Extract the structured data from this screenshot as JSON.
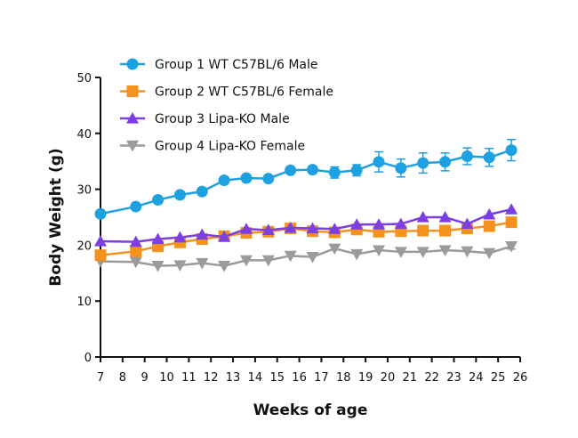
{
  "chart_data": {
    "type": "line",
    "title": "",
    "xlabel": "Weeks of age",
    "ylabel": "Body Weight (g)",
    "xlim": [
      7,
      26
    ],
    "ylim": [
      0,
      50
    ],
    "x_ticks": [
      7,
      8,
      9,
      10,
      11,
      12,
      13,
      14,
      15,
      16,
      17,
      18,
      19,
      20,
      21,
      22,
      23,
      24,
      25,
      26
    ],
    "y_ticks": [
      0,
      10,
      20,
      30,
      40,
      50
    ],
    "grid": false,
    "legend_position": "top-left",
    "series": [
      {
        "name": "Group 1 WT C57BL/6 Male",
        "color": "#1ea1e0",
        "marker": "circle",
        "x": [
          7,
          8.6,
          9.6,
          10.6,
          11.6,
          12.6,
          13.6,
          14.6,
          15.6,
          16.6,
          17.6,
          18.6,
          19.6,
          20.6,
          21.6,
          22.6,
          23.6,
          24.6,
          25.6
        ],
        "y": [
          25.6,
          26.9,
          28.1,
          29.0,
          29.6,
          31.6,
          32.0,
          31.9,
          33.4,
          33.5,
          33.0,
          33.4,
          34.9,
          33.8,
          34.7,
          34.9,
          35.9,
          35.7,
          37.0
        ],
        "err": [
          0.3,
          0.3,
          0.3,
          0.3,
          0.3,
          0.5,
          0.4,
          0.4,
          0.5,
          0.6,
          1.0,
          1.0,
          1.8,
          1.6,
          1.8,
          1.6,
          1.5,
          1.6,
          1.9
        ]
      },
      {
        "name": "Group 2 WT C57BL/6 Female",
        "color": "#f5921e",
        "marker": "square",
        "x": [
          7,
          8.6,
          9.6,
          10.6,
          11.6,
          12.6,
          13.6,
          14.6,
          15.6,
          16.6,
          17.6,
          18.6,
          19.6,
          20.6,
          21.6,
          22.6,
          23.6,
          24.6,
          25.6
        ],
        "y": [
          18.2,
          18.9,
          19.8,
          20.5,
          21.1,
          21.6,
          22.2,
          22.4,
          23.0,
          22.5,
          22.3,
          22.8,
          22.4,
          22.5,
          22.6,
          22.6,
          23.0,
          23.4,
          24.1
        ],
        "err": [
          0.3,
          0.3,
          0.3,
          0.3,
          0.3,
          0.3,
          0.3,
          0.3,
          0.3,
          0.3,
          0.3,
          0.3,
          0.3,
          0.3,
          0.3,
          0.3,
          0.3,
          0.4,
          0.5
        ]
      },
      {
        "name": "Group 3 Lipa-KO Male",
        "color": "#7b3fe4",
        "marker": "triangle-up",
        "x": [
          7,
          8.6,
          9.6,
          10.6,
          11.6,
          12.6,
          13.6,
          14.6,
          15.6,
          16.6,
          17.6,
          18.6,
          19.6,
          20.6,
          21.6,
          22.6,
          23.6,
          24.6,
          25.6
        ],
        "y": [
          20.7,
          20.6,
          21.1,
          21.4,
          21.9,
          21.5,
          22.9,
          22.7,
          23.1,
          23.0,
          22.9,
          23.7,
          23.7,
          23.8,
          25.0,
          25.0,
          23.8,
          25.5,
          26.4
        ],
        "err": [
          0.3,
          0.3,
          0.3,
          0.3,
          0.3,
          0.3,
          0.3,
          0.3,
          0.3,
          0.3,
          0.3,
          0.3,
          0.3,
          0.3,
          0.3,
          0.3,
          0.3,
          0.3,
          0.3
        ]
      },
      {
        "name": "Group 4 Lipa-KO Female",
        "color": "#9b9b9b",
        "marker": "triangle-down",
        "x": [
          7,
          8.6,
          9.6,
          10.6,
          11.6,
          12.6,
          13.6,
          14.6,
          15.6,
          16.6,
          17.6,
          18.6,
          19.6,
          20.6,
          21.6,
          22.6,
          23.6,
          24.6,
          25.6
        ],
        "y": [
          17.1,
          17.0,
          16.3,
          16.4,
          16.8,
          16.3,
          17.3,
          17.3,
          18.1,
          17.9,
          19.4,
          18.4,
          19.1,
          18.8,
          18.8,
          19.1,
          18.9,
          18.6,
          19.8
        ],
        "err": [
          0.3,
          0.3,
          0.3,
          0.3,
          0.3,
          0.3,
          0.3,
          0.3,
          0.3,
          0.3,
          0.3,
          0.3,
          0.3,
          0.3,
          0.3,
          0.3,
          0.3,
          0.3,
          0.5
        ]
      }
    ]
  }
}
